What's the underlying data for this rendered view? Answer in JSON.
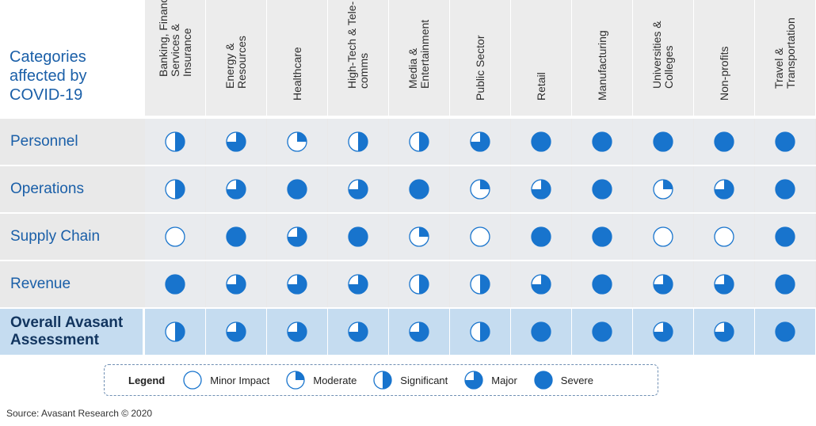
{
  "chart_data": {
    "type": "table",
    "corner_label": [
      "Categories",
      "affected by",
      "COVID-19"
    ],
    "columns": [
      [
        "Banking, Financial",
        "Services &",
        "Insurance"
      ],
      [
        "Energy &",
        "Resources"
      ],
      [
        "Healthcare"
      ],
      [
        "High-Tech & Tele-",
        "comms"
      ],
      [
        "Media &",
        "Entertainment"
      ],
      [
        "Public Sector"
      ],
      [
        "Retail"
      ],
      [
        "Manufacturing"
      ],
      [
        "Universities &",
        "Colleges"
      ],
      [
        "Non-profits"
      ],
      [
        "Travel &",
        "Transportation"
      ]
    ],
    "rows": [
      {
        "label": "Personnel",
        "values": [
          2,
          3,
          1,
          2,
          2,
          3,
          4,
          4,
          4,
          4,
          4
        ]
      },
      {
        "label": "Operations",
        "values": [
          2,
          3,
          4,
          3,
          4,
          1,
          3,
          4,
          1,
          3,
          4
        ]
      },
      {
        "label": "Supply Chain",
        "values": [
          0,
          4,
          3,
          4,
          1,
          0,
          4,
          4,
          0,
          0,
          4
        ]
      },
      {
        "label": "Revenue",
        "values": [
          4,
          3,
          3,
          3,
          2,
          2,
          3,
          4,
          3,
          3,
          4
        ]
      }
    ],
    "overall": {
      "label": [
        "Overall Avasant",
        "Assessment"
      ],
      "values": [
        2,
        3,
        3,
        3,
        3,
        2,
        4,
        4,
        3,
        3,
        4
      ]
    },
    "scale": "0 = empty, 1 = quarter, 2 = half, 3 = three-quarter, 4 = full circle",
    "legend": {
      "title": "Legend",
      "items": [
        {
          "label": "Minor Impact",
          "level": 0
        },
        {
          "label": "Moderate",
          "level": 1
        },
        {
          "label": "Significant",
          "level": 2
        },
        {
          "label": "Major",
          "level": 3
        },
        {
          "label": "Severe",
          "level": 4
        }
      ]
    }
  },
  "source": "Source: Avasant Research © 2020",
  "colors": {
    "fill": "#1874cd",
    "stroke": "#1874cd",
    "label": "#1a5fa8"
  }
}
